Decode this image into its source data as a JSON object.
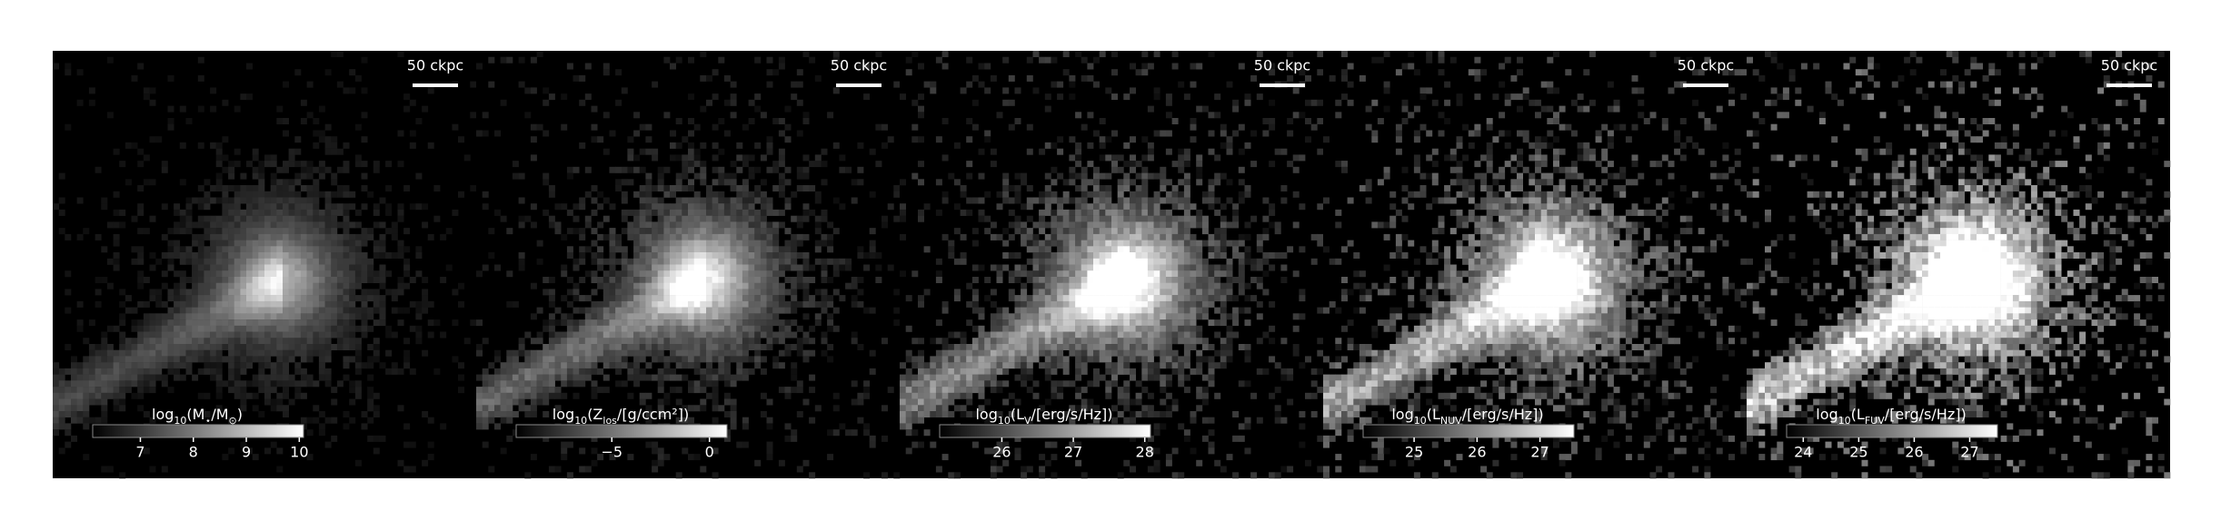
{
  "panels": [
    {
      "scale_label": "50 ckpc",
      "label_parts": [
        "log",
        "10",
        "(M",
        "⋆",
        "/M",
        "⊙",
        ")"
      ],
      "range": [
        6.1,
        10.08
      ],
      "ticks": [
        7,
        8,
        9,
        10
      ]
    },
    {
      "scale_label": "50 ckpc",
      "label_parts": [
        "log",
        "10",
        "(Z",
        "los",
        "/[g/ccm²])"
      ],
      "range": [
        -9.9,
        0.9
      ],
      "ticks": [
        {
          "value": -5,
          "label": "−5"
        },
        0
      ]
    },
    {
      "scale_label": "50 ckpc",
      "label_parts": [
        "log",
        "10",
        "(L",
        "V",
        "/[erg/s/Hz])"
      ],
      "range": [
        25.13,
        28.08
      ],
      "ticks": [
        26,
        27,
        28
      ]
    },
    {
      "scale_label": "50 ckpc",
      "label_parts": [
        "log",
        "10",
        "(L",
        "NUV",
        "/[erg/s/Hz])"
      ],
      "range": [
        24.19,
        27.54
      ],
      "ticks": [
        25,
        26,
        27
      ]
    },
    {
      "scale_label": "50 ckpc",
      "label_parts": [
        "log",
        "10",
        "(L",
        "FUV",
        "/[erg/s/Hz])"
      ],
      "range": [
        23.7,
        27.5
      ],
      "ticks": [
        24,
        25,
        26,
        27
      ]
    }
  ]
}
